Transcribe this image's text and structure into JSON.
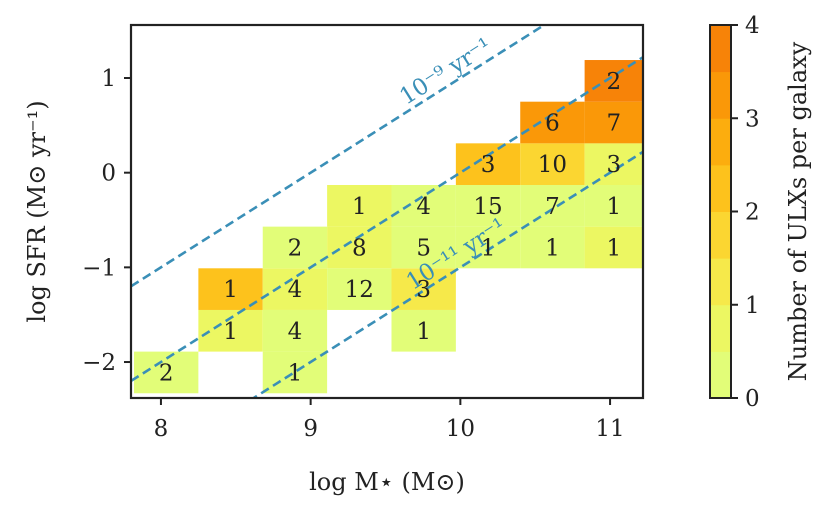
{
  "chart_data": {
    "type": "heatmap",
    "xlabel": "log M⋆ (M⊙)",
    "ylabel": "log SFR (M⊙ yr⁻¹)",
    "xlim": [
      7.8,
      11.22
    ],
    "ylim": [
      -2.38,
      1.56
    ],
    "xticks": [
      8,
      9,
      10,
      11
    ],
    "yticks": [
      -2,
      -1,
      0,
      1
    ],
    "xtick_labels": [
      "8",
      "9",
      "10",
      "11"
    ],
    "ytick_labels": [
      "−2",
      "−1",
      "0",
      "1"
    ],
    "x_bin_edges": [
      7.82,
      8.25,
      8.68,
      9.11,
      9.54,
      9.97,
      10.4,
      10.83,
      11.26
    ],
    "y_bin_edges": [
      -2.33,
      -1.89,
      -1.45,
      -1.01,
      -0.57,
      -0.13,
      0.31,
      0.75,
      1.19,
      1.63
    ],
    "cells": [
      {
        "col": 0,
        "row": 0,
        "count": 2,
        "value": 0.0
      },
      {
        "col": 2,
        "row": 0,
        "count": 1,
        "value": 0.0
      },
      {
        "col": 1,
        "row": 1,
        "count": 1,
        "value": 0.6
      },
      {
        "col": 2,
        "row": 1,
        "count": 4,
        "value": 0.0
      },
      {
        "col": 4,
        "row": 1,
        "count": 1,
        "value": 0.0
      },
      {
        "col": 1,
        "row": 2,
        "count": 1,
        "value": 2.0
      },
      {
        "col": 2,
        "row": 2,
        "count": 4,
        "value": 0.5
      },
      {
        "col": 3,
        "row": 2,
        "count": 12,
        "value": 0.3
      },
      {
        "col": 4,
        "row": 2,
        "count": 3,
        "value": 1.0
      },
      {
        "col": 2,
        "row": 3,
        "count": 2,
        "value": 0.0
      },
      {
        "col": 3,
        "row": 3,
        "count": 8,
        "value": 0.6
      },
      {
        "col": 4,
        "row": 3,
        "count": 5,
        "value": 0.0
      },
      {
        "col": 5,
        "row": 3,
        "count": 1,
        "value": 0.0
      },
      {
        "col": 6,
        "row": 3,
        "count": 1,
        "value": 0.0
      },
      {
        "col": 7,
        "row": 3,
        "count": 1,
        "value": 0.5
      },
      {
        "col": 3,
        "row": 4,
        "count": 1,
        "value": 0.6
      },
      {
        "col": 4,
        "row": 4,
        "count": 4,
        "value": 0.0
      },
      {
        "col": 5,
        "row": 4,
        "count": 15,
        "value": 0.2
      },
      {
        "col": 6,
        "row": 4,
        "count": 7,
        "value": 0.0
      },
      {
        "col": 7,
        "row": 4,
        "count": 1,
        "value": 0.0
      },
      {
        "col": 5,
        "row": 5,
        "count": 3,
        "value": 2.4
      },
      {
        "col": 6,
        "row": 5,
        "count": 10,
        "value": 1.6
      },
      {
        "col": 7,
        "row": 5,
        "count": 3,
        "value": 0.7
      },
      {
        "col": 6,
        "row": 6,
        "count": 6,
        "value": 3.0
      },
      {
        "col": 7,
        "row": 6,
        "count": 7,
        "value": 3.2
      },
      {
        "col": 7,
        "row": 7,
        "count": 2,
        "value": 3.6
      }
    ],
    "ssfr_lines": [
      {
        "log_ssfr": -9,
        "label": "10⁻⁹ yr⁻¹"
      },
      {
        "log_ssfr": -10,
        "label": ""
      },
      {
        "log_ssfr": -11,
        "label": "10⁻¹¹ yr⁻¹"
      }
    ],
    "line_color": "#3a8fb7",
    "colorbar": {
      "label": "Number of ULXs per galaxy",
      "min": 0,
      "max": 4,
      "ticks": [
        0,
        1,
        2,
        3,
        4
      ],
      "tick_labels": [
        "0",
        "1",
        "2",
        "3",
        "4"
      ],
      "colors": [
        "#e2fd78",
        "#ecf762",
        "#f6e94a",
        "#fbd631",
        "#fdc21c",
        "#fcad0e",
        "#fa9808",
        "#f78308"
      ]
    },
    "grid": false
  }
}
